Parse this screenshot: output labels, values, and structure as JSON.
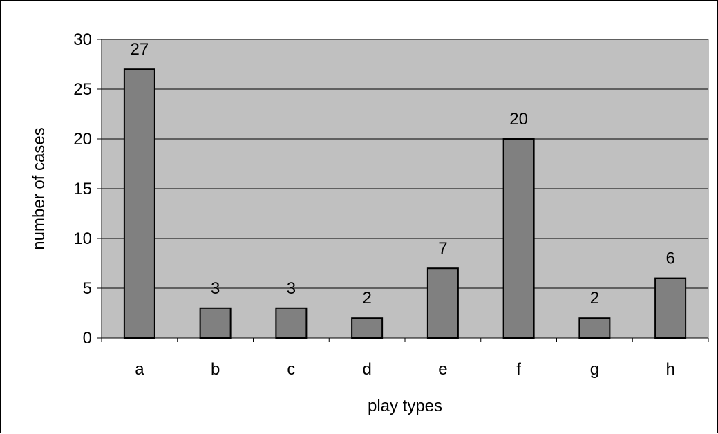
{
  "chart_data": {
    "type": "bar",
    "title": "",
    "xlabel": "play types",
    "ylabel": "number of cases",
    "categories": [
      "a",
      "b",
      "c",
      "d",
      "e",
      "f",
      "g",
      "h"
    ],
    "values": [
      27,
      3,
      3,
      2,
      7,
      20,
      2,
      6
    ],
    "ylim": [
      0,
      30
    ],
    "yticks": [
      "0",
      "5",
      "10",
      "15",
      "20",
      "25",
      "30"
    ],
    "grid": true,
    "legend": "none",
    "colors": {
      "plot_background": "#c0c0c0",
      "bar_fill": "#808080",
      "bar_stroke": "#000000",
      "gridline": "#000000"
    }
  }
}
